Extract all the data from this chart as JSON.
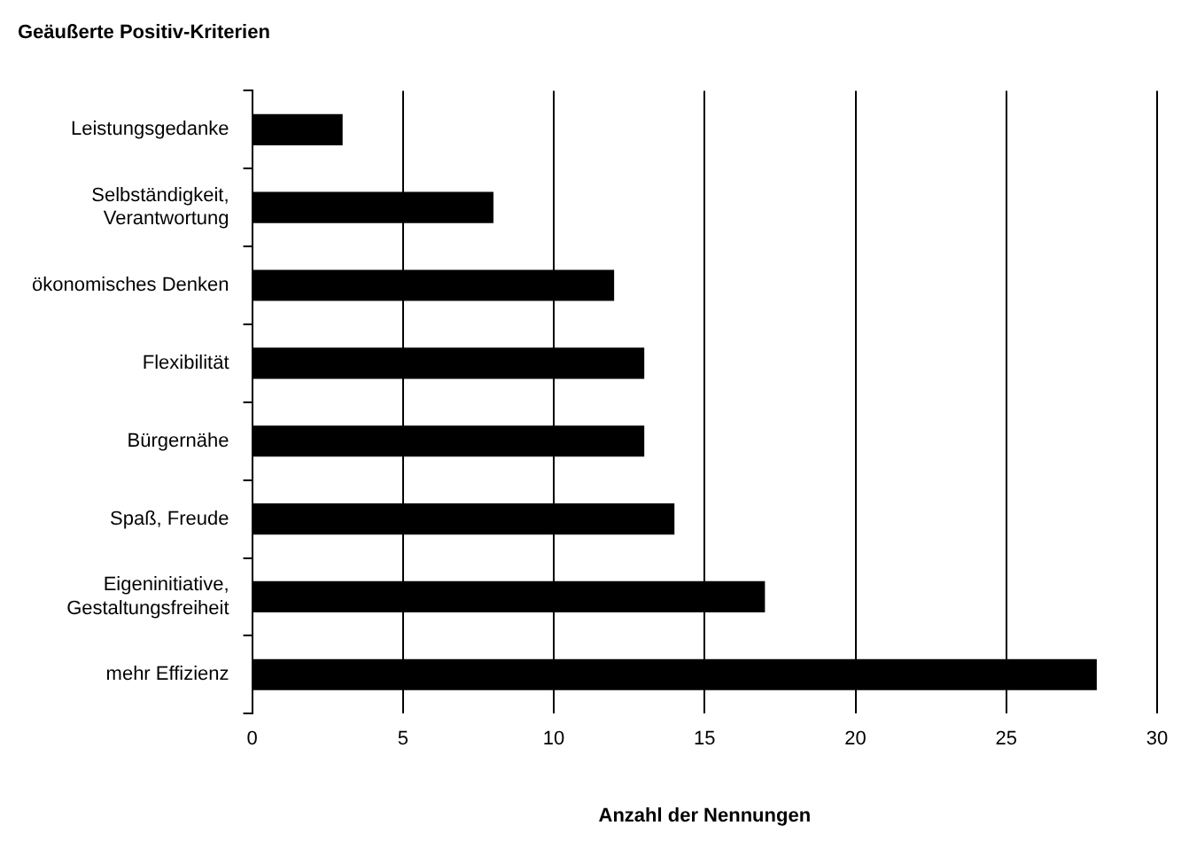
{
  "chart_data": {
    "type": "bar",
    "orientation": "horizontal",
    "title": "Geäußerte Positiv-Kriterien",
    "xlabel": "Anzahl der Nennungen",
    "categories": [
      "Leistungsgedanke",
      "Selbständigkeit, Verantwortung",
      "ökonomisches Denken",
      "Flexibilität",
      "Bürgernähe",
      "Spaß, Freude",
      "Eigeninitiative, Gestaltungsfreiheit",
      "mehr Effizienz"
    ],
    "values": [
      3,
      8,
      12,
      13,
      13,
      14,
      17,
      28
    ],
    "color": "#000000",
    "xlim": [
      0,
      30
    ],
    "xticks": [
      0,
      5,
      10,
      15,
      20,
      25,
      30
    ],
    "grid": "x",
    "legend": false
  }
}
